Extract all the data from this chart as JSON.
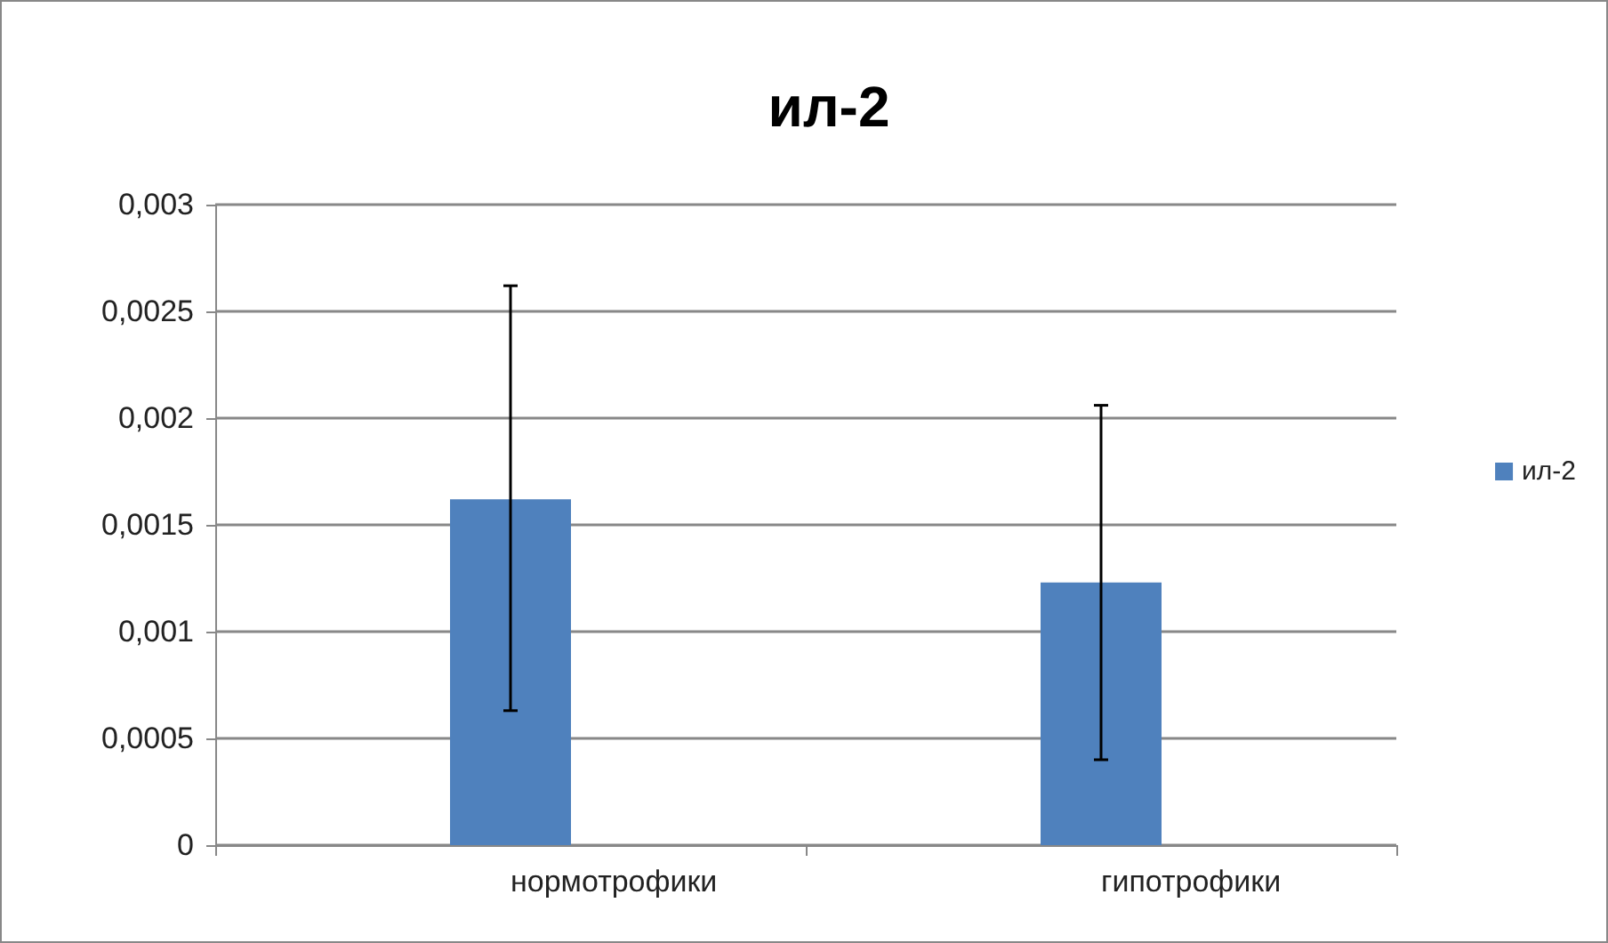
{
  "chart_data": {
    "type": "bar",
    "title": "ил-2",
    "categories": [
      "нормотрофики",
      "гипотрофики"
    ],
    "series": [
      {
        "name": "ил-2",
        "color": "#4f81bd",
        "values": [
          0.00162,
          0.00123
        ],
        "errors": [
          [
            0.00063,
            0.00262
          ],
          [
            0.0004,
            0.00206
          ]
        ]
      }
    ],
    "ylim": [
      0,
      0.003
    ],
    "yticks": [
      {
        "value": 0,
        "label": "0"
      },
      {
        "value": 0.0005,
        "label": "0,0005"
      },
      {
        "value": 0.001,
        "label": "0,001"
      },
      {
        "value": 0.0015,
        "label": "0,0015"
      },
      {
        "value": 0.002,
        "label": "0,002"
      },
      {
        "value": 0.0025,
        "label": "0,0025"
      },
      {
        "value": 0.003,
        "label": "0,003"
      }
    ],
    "grid": "y",
    "legend": "right"
  }
}
